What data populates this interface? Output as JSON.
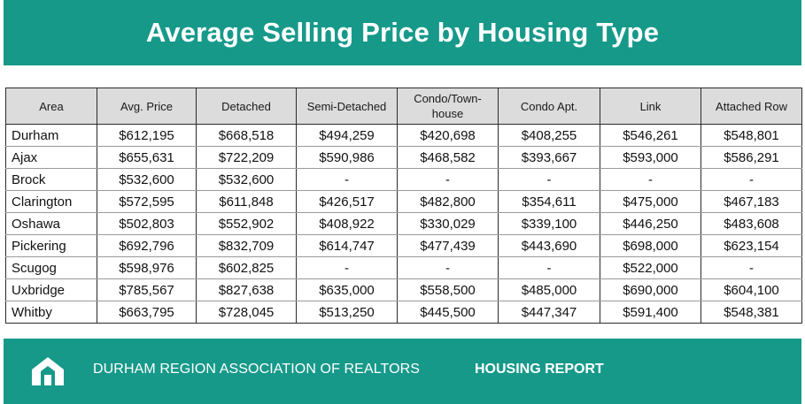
{
  "title": "Average Selling Price by Housing Type",
  "table": {
    "headers": [
      "Area",
      "Avg. Price",
      "Detached",
      "Semi-Detached",
      "Condo/Town-\nhouse",
      "Condo Apt.",
      "Link",
      "Attached Row"
    ],
    "rows": [
      [
        "Durham",
        "$612,195",
        "$668,518",
        "$494,259",
        "$420,698",
        "$408,255",
        "$546,261",
        "$548,801"
      ],
      [
        "Ajax",
        "$655,631",
        "$722,209",
        "$590,986",
        "$468,582",
        "$393,667",
        "$593,000",
        "$586,291"
      ],
      [
        "Brock",
        "$532,600",
        "$532,600",
        "-",
        "-",
        "-",
        "-",
        "-"
      ],
      [
        "Clarington",
        "$572,595",
        "$611,848",
        "$426,517",
        "$482,800",
        "$354,611",
        "$475,000",
        "$467,183"
      ],
      [
        "Oshawa",
        "$502,803",
        "$552,902",
        "$408,922",
        "$330,029",
        "$339,100",
        "$446,250",
        "$483,608"
      ],
      [
        "Pickering",
        "$692,796",
        "$832,709",
        "$614,747",
        "$477,439",
        "$443,690",
        "$698,000",
        "$623,154"
      ],
      [
        "Scugog",
        "$598,976",
        "$602,825",
        "-",
        "-",
        "-",
        "$522,000",
        "-"
      ],
      [
        "Uxbridge",
        "$785,567",
        "$827,638",
        "$635,000",
        "$558,500",
        "$485,000",
        "$690,000",
        "$604,100"
      ],
      [
        "Whitby",
        "$663,795",
        "$728,045",
        "$513,250",
        "$445,500",
        "$447,347",
        "$591,400",
        "$548,381"
      ]
    ]
  },
  "footer": {
    "logo_icon": "house-arrow-icon",
    "org": "DURHAM REGION ASSOCIATION OF REALTORS",
    "report": "HOUSING REPORT"
  },
  "colors": {
    "teal": "#17998a",
    "header_bg": "#dcdcdc"
  }
}
